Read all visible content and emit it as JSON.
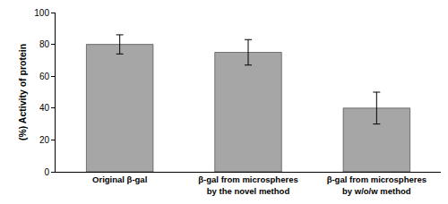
{
  "chart_data": {
    "type": "bar",
    "y_label": "(%) Activity of protein",
    "categories": [
      "Original β-gal",
      "β-gal from microspheres by the novel method",
      "β-gal from microspheres by w/o/w method"
    ],
    "values": [
      80,
      75,
      40
    ],
    "errors": [
      6,
      8,
      10
    ],
    "color": "#a6a6a6",
    "ylim": [
      0,
      100
    ],
    "yticks": [
      0,
      20,
      40,
      60,
      80,
      100
    ],
    "grid": false
  }
}
